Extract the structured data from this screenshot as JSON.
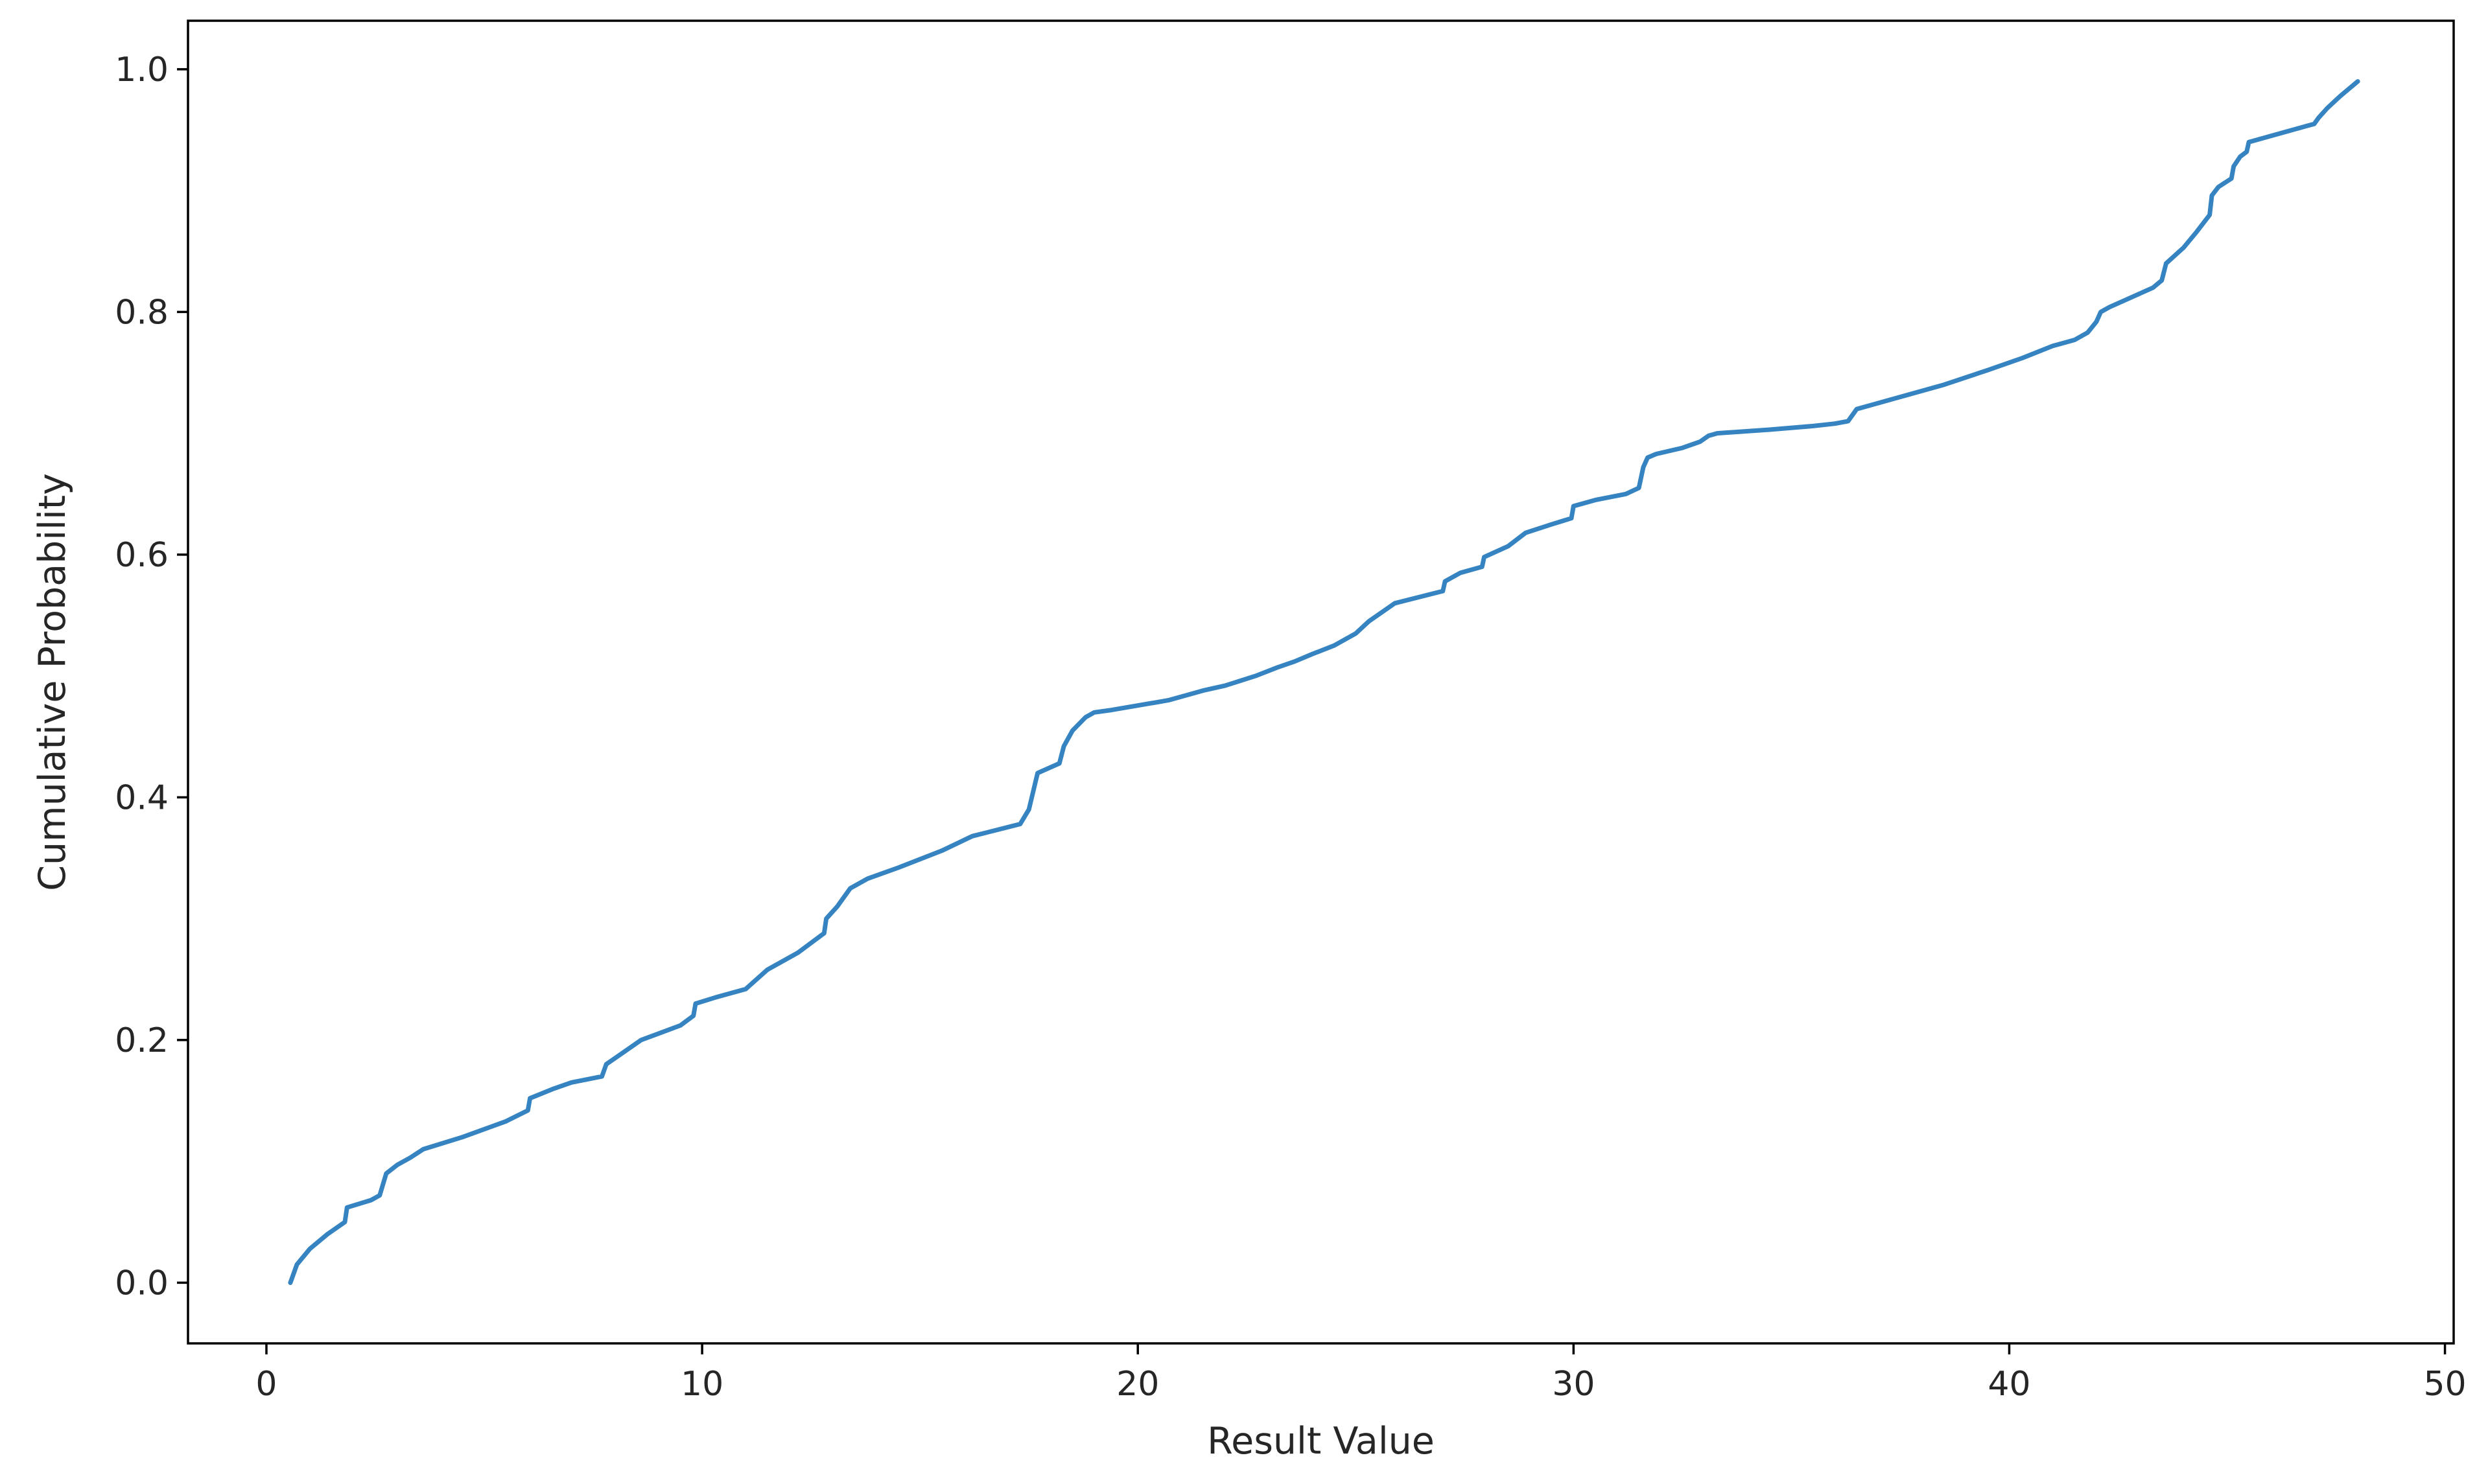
{
  "chart_data": {
    "type": "line",
    "title": "",
    "xlabel": "Result Value",
    "ylabel": "Cumulative Probability",
    "xlim": [
      -1.8,
      50.2
    ],
    "ylim": [
      -0.05,
      1.04
    ],
    "xticks": [
      0,
      10,
      20,
      30,
      40,
      50
    ],
    "yticks": [
      0.0,
      0.2,
      0.4,
      0.6,
      0.8,
      1.0
    ],
    "xtick_labels": [
      "0",
      "10",
      "20",
      "30",
      "40",
      "50"
    ],
    "ytick_labels": [
      "0.0",
      "0.2",
      "0.4",
      "0.6",
      "0.8",
      "1.0"
    ],
    "grid": false,
    "line_color": "#3583c1",
    "series": [
      {
        "x": [
          0.55,
          0.7,
          1.0,
          1.4,
          1.8,
          1.85,
          2.4,
          2.6,
          2.75,
          3.0,
          3.3,
          3.6,
          4.5,
          5.5,
          6.0,
          6.05,
          6.6,
          7.0,
          7.7,
          7.8,
          8.2,
          8.6,
          9.5,
          9.8,
          9.85,
          10.3,
          11.0,
          11.5,
          12.2,
          12.8,
          12.85,
          13.1,
          13.4,
          13.8,
          14.5,
          15.5,
          16.2,
          17.3,
          17.5,
          17.6,
          17.7,
          18.2,
          18.3,
          18.5,
          18.8,
          19.0,
          19.4,
          20.7,
          21.5,
          22.0,
          22.7,
          23.2,
          23.6,
          24.0,
          24.5,
          25.0,
          25.3,
          25.5,
          25.9,
          27.0,
          27.05,
          27.4,
          27.9,
          27.95,
          28.5,
          28.9,
          29.5,
          29.95,
          30.0,
          30.5,
          31.2,
          31.5,
          31.6,
          31.7,
          31.9,
          32.5,
          32.9,
          33.1,
          33.3,
          34.5,
          35.5,
          36.0,
          36.3,
          36.5,
          37.5,
          38.5,
          39.5,
          40.3,
          41.0,
          41.5,
          41.8,
          42.0,
          42.1,
          42.3,
          42.8,
          43.3,
          43.5,
          43.6,
          44.0,
          44.3,
          44.6,
          44.65,
          44.8,
          45.1,
          45.15,
          45.3,
          45.45,
          45.5,
          46.0,
          46.5,
          47.0,
          47.1,
          47.3,
          47.6,
          48.0
        ],
        "y": [
          0.0,
          0.015,
          0.028,
          0.04,
          0.05,
          0.062,
          0.068,
          0.072,
          0.09,
          0.097,
          0.103,
          0.11,
          0.12,
          0.133,
          0.142,
          0.152,
          0.16,
          0.165,
          0.17,
          0.18,
          0.19,
          0.2,
          0.212,
          0.22,
          0.23,
          0.235,
          0.242,
          0.258,
          0.272,
          0.288,
          0.3,
          0.31,
          0.325,
          0.333,
          0.342,
          0.356,
          0.368,
          0.378,
          0.39,
          0.405,
          0.42,
          0.428,
          0.442,
          0.455,
          0.466,
          0.47,
          0.472,
          0.48,
          0.488,
          0.492,
          0.5,
          0.507,
          0.512,
          0.518,
          0.525,
          0.535,
          0.545,
          0.55,
          0.56,
          0.57,
          0.578,
          0.585,
          0.59,
          0.598,
          0.607,
          0.618,
          0.625,
          0.63,
          0.64,
          0.645,
          0.65,
          0.655,
          0.672,
          0.68,
          0.683,
          0.688,
          0.693,
          0.698,
          0.7,
          0.703,
          0.706,
          0.708,
          0.71,
          0.72,
          0.73,
          0.74,
          0.752,
          0.762,
          0.772,
          0.777,
          0.783,
          0.792,
          0.8,
          0.804,
          0.812,
          0.82,
          0.826,
          0.84,
          0.853,
          0.866,
          0.88,
          0.896,
          0.903,
          0.91,
          0.92,
          0.928,
          0.932,
          0.94,
          0.945,
          0.95,
          0.955,
          0.96,
          0.968,
          0.978,
          0.99
        ]
      }
    ]
  }
}
